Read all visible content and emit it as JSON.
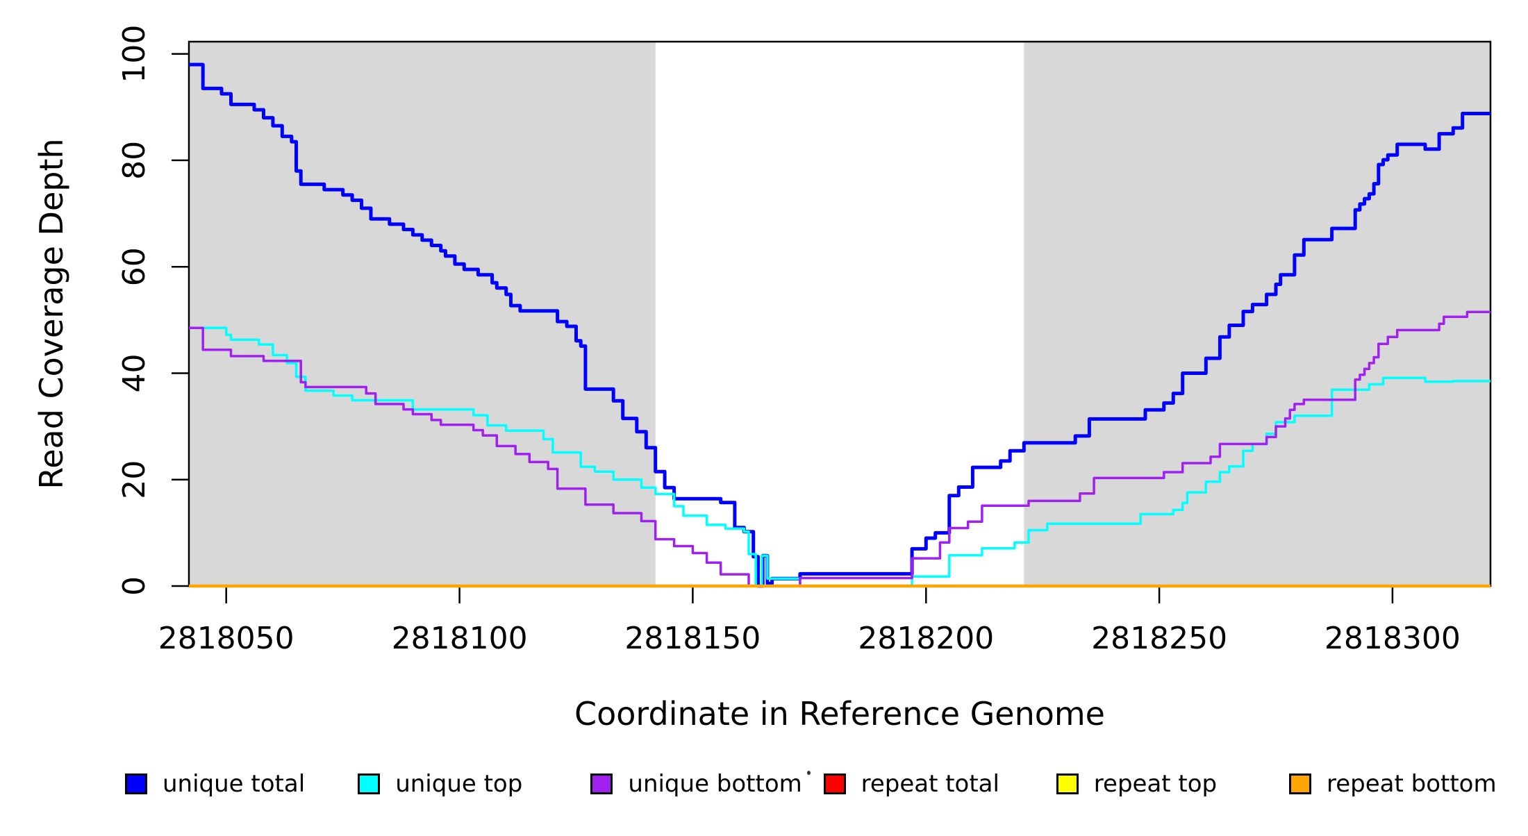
{
  "page": {
    "background": "#ffffff"
  },
  "chart_data": {
    "type": "line",
    "subtype": "step-after-coverage",
    "title": "",
    "xlabel": "Coordinate in Reference Genome",
    "ylabel": "Read Coverage Depth",
    "x_domain": [
      2818042,
      2818321
    ],
    "y_domain": [
      0,
      102.3
    ],
    "x_ticks": [
      2818050,
      2818100,
      2818150,
      2818200,
      2818250,
      2818300
    ],
    "y_ticks": [
      0,
      20,
      40,
      60,
      80,
      100
    ],
    "grid": false,
    "legend_position": "bottom",
    "axis_color": "#000000",
    "shaded_bands": {
      "color": "#d8d8d8",
      "regions": [
        [
          2818042,
          2818142
        ],
        [
          2818221,
          2818321
        ]
      ]
    },
    "series": [
      {
        "name": "unique total",
        "color": "#0000ff",
        "stroke_width": 5,
        "points": [
          [
            2818042,
            98
          ],
          [
            2818045,
            93.5
          ],
          [
            2818049,
            92.5
          ],
          [
            2818051,
            90.5
          ],
          [
            2818056,
            89.5
          ],
          [
            2818058,
            88
          ],
          [
            2818060,
            86.5
          ],
          [
            2818062,
            84.5
          ],
          [
            2818064,
            83.5
          ],
          [
            2818065,
            78
          ],
          [
            2818066,
            75.5
          ],
          [
            2818071,
            74.5
          ],
          [
            2818075,
            73.5
          ],
          [
            2818077,
            72.5
          ],
          [
            2818079,
            71
          ],
          [
            2818081,
            69
          ],
          [
            2818085,
            68
          ],
          [
            2818088,
            67
          ],
          [
            2818090,
            66
          ],
          [
            2818092,
            65
          ],
          [
            2818094,
            64
          ],
          [
            2818096,
            63
          ],
          [
            2818097,
            62
          ],
          [
            2818099,
            60.5
          ],
          [
            2818101,
            59.5
          ],
          [
            2818104,
            58.5
          ],
          [
            2818107,
            57
          ],
          [
            2818108,
            56
          ],
          [
            2818110,
            54.8
          ],
          [
            2818111,
            52.7
          ],
          [
            2818113,
            51.7
          ],
          [
            2818121,
            49.7
          ],
          [
            2818123,
            48.8
          ],
          [
            2818125,
            46.1
          ],
          [
            2818126,
            45.1
          ],
          [
            2818127,
            37
          ],
          [
            2818133,
            34.8
          ],
          [
            2818135,
            31.5
          ],
          [
            2818138,
            29
          ],
          [
            2818140,
            26
          ],
          [
            2818142,
            21.5
          ],
          [
            2818144,
            18.5
          ],
          [
            2818146,
            16.4
          ],
          [
            2818156,
            15.7
          ],
          [
            2818159,
            11
          ],
          [
            2818161,
            10.2
          ],
          [
            2818163,
            5.5
          ],
          [
            2818164,
            0
          ],
          [
            2818165,
            5.7
          ],
          [
            2818166,
            0.5
          ],
          [
            2818167,
            1.4
          ],
          [
            2818173,
            2.3
          ],
          [
            2818197,
            7
          ],
          [
            2818200,
            9
          ],
          [
            2818202,
            10
          ],
          [
            2818205,
            17
          ],
          [
            2818207,
            18.6
          ],
          [
            2818210,
            22.3
          ],
          [
            2818216,
            23.5
          ],
          [
            2818218,
            25.4
          ],
          [
            2818221,
            26.9
          ],
          [
            2818232,
            28.2
          ],
          [
            2818235,
            31.4
          ],
          [
            2818247,
            33.1
          ],
          [
            2818251,
            34.4
          ],
          [
            2818253,
            36.2
          ],
          [
            2818255,
            40
          ],
          [
            2818260,
            42.8
          ],
          [
            2818263,
            46.8
          ],
          [
            2818265,
            49
          ],
          [
            2818268,
            51.6
          ],
          [
            2818270,
            52.9
          ],
          [
            2818273,
            54.8
          ],
          [
            2818275,
            56.7
          ],
          [
            2818276,
            58.5
          ],
          [
            2818279,
            62.2
          ],
          [
            2818281,
            65.1
          ],
          [
            2818287,
            67.2
          ],
          [
            2818292,
            70.7
          ],
          [
            2818293,
            71.8
          ],
          [
            2818294,
            72.8
          ],
          [
            2818295,
            73.7
          ],
          [
            2818296,
            75.6
          ],
          [
            2818297,
            79.2
          ],
          [
            2818298,
            80.1
          ],
          [
            2818299,
            81
          ],
          [
            2818301,
            83
          ],
          [
            2818307,
            82.1
          ],
          [
            2818310,
            85
          ],
          [
            2818313,
            86.1
          ],
          [
            2818315,
            88.8
          ],
          [
            2818321,
            88.8
          ]
        ]
      },
      {
        "name": "unique top",
        "color": "#00ffff",
        "stroke_width": 3.5,
        "points": [
          [
            2818042,
            48.5
          ],
          [
            2818050,
            47.2
          ],
          [
            2818051,
            46.3
          ],
          [
            2818057,
            45.4
          ],
          [
            2818060,
            43.4
          ],
          [
            2818063,
            41.9
          ],
          [
            2818065,
            39.3
          ],
          [
            2818067,
            36.7
          ],
          [
            2818073,
            35.8
          ],
          [
            2818077,
            34.9
          ],
          [
            2818090,
            33.2
          ],
          [
            2818103,
            32.1
          ],
          [
            2818106,
            30.2
          ],
          [
            2818110,
            29.2
          ],
          [
            2818118,
            27.6
          ],
          [
            2818120,
            25.1
          ],
          [
            2818126,
            22.4
          ],
          [
            2818129,
            21.5
          ],
          [
            2818133,
            20
          ],
          [
            2818139,
            18.5
          ],
          [
            2818142,
            17.3
          ],
          [
            2818146,
            15
          ],
          [
            2818148,
            13.2
          ],
          [
            2818153,
            11.5
          ],
          [
            2818157,
            10.8
          ],
          [
            2818161,
            10.2
          ],
          [
            2818162,
            6
          ],
          [
            2818163.5,
            0
          ],
          [
            2818164.8,
            5.7
          ],
          [
            2818166,
            1.4
          ],
          [
            2818173,
            0
          ],
          [
            2818197,
            1.8
          ],
          [
            2818205,
            5.8
          ],
          [
            2818212,
            7.1
          ],
          [
            2818219,
            8.2
          ],
          [
            2818222,
            10.5
          ],
          [
            2818226,
            11.7
          ],
          [
            2818246,
            13.5
          ],
          [
            2818253,
            14.3
          ],
          [
            2818255,
            15.6
          ],
          [
            2818256,
            17.6
          ],
          [
            2818260,
            19.6
          ],
          [
            2818263,
            21.4
          ],
          [
            2818265,
            22.5
          ],
          [
            2818268,
            25.4
          ],
          [
            2818270,
            26.7
          ],
          [
            2818273,
            28.6
          ],
          [
            2818275,
            30.8
          ],
          [
            2818279,
            32
          ],
          [
            2818287,
            36.9
          ],
          [
            2818295,
            37.9
          ],
          [
            2818298,
            39.1
          ],
          [
            2818307,
            38.4
          ],
          [
            2818313,
            38.5
          ],
          [
            2818321,
            38.5
          ]
        ]
      },
      {
        "name": "unique bottom",
        "color": "#a020f0",
        "stroke_width": 3.5,
        "points": [
          [
            2818042,
            48.5
          ],
          [
            2818045,
            44.4
          ],
          [
            2818051,
            43.2
          ],
          [
            2818058,
            42.3
          ],
          [
            2818066,
            38.3
          ],
          [
            2818067,
            37.4
          ],
          [
            2818080,
            36.2
          ],
          [
            2818082,
            34.2
          ],
          [
            2818088,
            33.2
          ],
          [
            2818090,
            32.3
          ],
          [
            2818094,
            31.2
          ],
          [
            2818096,
            30.3
          ],
          [
            2818103,
            29.3
          ],
          [
            2818105,
            28.3
          ],
          [
            2818108,
            26.3
          ],
          [
            2818112,
            24.8
          ],
          [
            2818115,
            23.3
          ],
          [
            2818119,
            22
          ],
          [
            2818121,
            18.3
          ],
          [
            2818127,
            15.3
          ],
          [
            2818133,
            13.7
          ],
          [
            2818139,
            12.2
          ],
          [
            2818142,
            8.8
          ],
          [
            2818146,
            7.5
          ],
          [
            2818150,
            6.2
          ],
          [
            2818153,
            4.4
          ],
          [
            2818156,
            2.2
          ],
          [
            2818162,
            0
          ],
          [
            2818173,
            1.5
          ],
          [
            2818197,
            5.2
          ],
          [
            2818203,
            8.2
          ],
          [
            2818205,
            10.9
          ],
          [
            2818209,
            12.1
          ],
          [
            2818212,
            15.1
          ],
          [
            2818222,
            16
          ],
          [
            2818233,
            17.4
          ],
          [
            2818236,
            20.3
          ],
          [
            2818251,
            21.4
          ],
          [
            2818255,
            23.1
          ],
          [
            2818261,
            24.3
          ],
          [
            2818263,
            26.7
          ],
          [
            2818273,
            28
          ],
          [
            2818275,
            30
          ],
          [
            2818277,
            31.5
          ],
          [
            2818278,
            33.1
          ],
          [
            2818279,
            34.2
          ],
          [
            2818281,
            35
          ],
          [
            2818292,
            38.8
          ],
          [
            2818293,
            39.7
          ],
          [
            2818294,
            40.8
          ],
          [
            2818295,
            41.9
          ],
          [
            2818296,
            43
          ],
          [
            2818297,
            45.5
          ],
          [
            2818299,
            46.8
          ],
          [
            2818301,
            48.1
          ],
          [
            2818310,
            49.3
          ],
          [
            2818311,
            50.6
          ],
          [
            2818316,
            51.5
          ],
          [
            2818321,
            51.5
          ]
        ]
      },
      {
        "name": "repeat total",
        "color": "#ff0000",
        "stroke_width": 3,
        "points": [
          [
            2818042,
            0
          ],
          [
            2818321,
            0
          ]
        ]
      },
      {
        "name": "repeat top",
        "color": "#ffff00",
        "stroke_width": 3,
        "points": [
          [
            2818042,
            0
          ],
          [
            2818321,
            0
          ]
        ]
      },
      {
        "name": "repeat bottom",
        "color": "#ffa500",
        "stroke_width": 4.5,
        "points": [
          [
            2818042,
            0
          ],
          [
            2818321,
            0
          ]
        ]
      }
    ]
  },
  "legend": {
    "items": [
      {
        "label": "unique total",
        "color": "#0000ff"
      },
      {
        "label": "unique top",
        "color": "#00ffff"
      },
      {
        "label": "unique bottom",
        "color": "#a020f0"
      },
      {
        "label": "repeat total",
        "color": "#ff0000"
      },
      {
        "label": "repeat top",
        "color": "#ffff00"
      },
      {
        "label": "repeat bottom",
        "color": "#ffa500"
      }
    ]
  }
}
